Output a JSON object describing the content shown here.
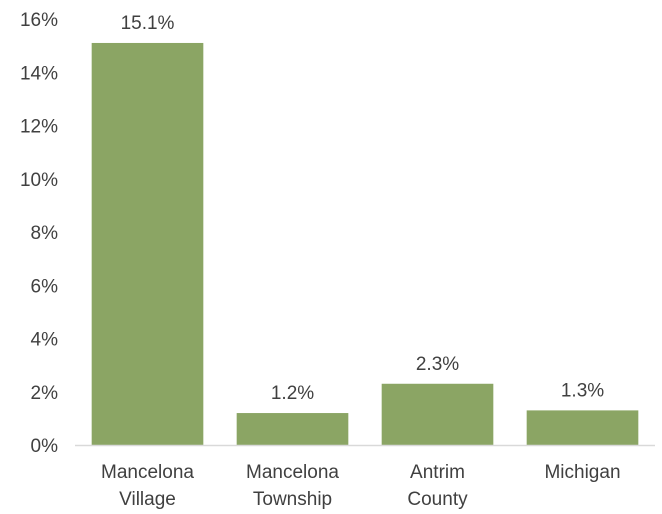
{
  "chart_data": {
    "type": "bar",
    "categories": [
      [
        "Mancelona",
        "Village"
      ],
      [
        "Mancelona",
        "Township"
      ],
      [
        "Antrim",
        "County"
      ],
      [
        "Michigan"
      ]
    ],
    "values": [
      15.1,
      1.2,
      2.3,
      1.3
    ],
    "data_labels": [
      "15.1%",
      "1.2%",
      "2.3%",
      "1.3%"
    ],
    "ylim": [
      0,
      16
    ],
    "yticks": [
      0,
      2,
      4,
      6,
      8,
      10,
      12,
      14,
      16
    ],
    "ytick_labels": [
      "0%",
      "2%",
      "4%",
      "6%",
      "8%",
      "10%",
      "12%",
      "14%",
      "16%"
    ],
    "grid": false,
    "legend": "none",
    "bar_color": "#8BA564",
    "axis_color": "#D9D9D9"
  }
}
